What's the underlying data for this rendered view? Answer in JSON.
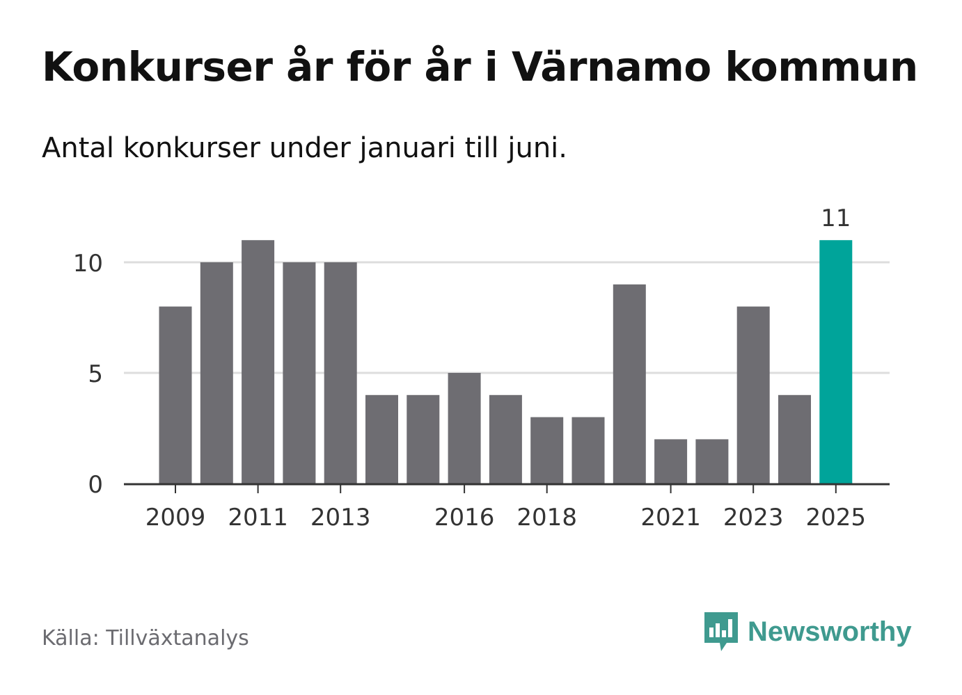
{
  "header": {
    "title": "Konkurser år för år i Värnamo kommun",
    "subtitle": "Antal konkurser under januari till juni."
  },
  "footer": {
    "source": "Källa: Tillväxtanalys",
    "brand": "Newsworthy",
    "brand_icon": "bar-chart-speech-bubble-icon"
  },
  "colors": {
    "bar": "#6e6d72",
    "highlight": "#00a49a",
    "grid": "#dddddd",
    "axis": "#333333",
    "tick_text": "#333333",
    "brand": "#3f9a8f"
  },
  "chart_data": {
    "type": "bar",
    "categories": [
      "2009",
      "2010",
      "2011",
      "2012",
      "2013",
      "2014",
      "2015",
      "2016",
      "2017",
      "2018",
      "2019",
      "2020",
      "2021",
      "2022",
      "2023",
      "2024",
      "2025"
    ],
    "values": [
      8,
      10,
      11,
      10,
      10,
      4,
      4,
      5,
      4,
      3,
      3,
      9,
      2,
      2,
      8,
      4,
      11
    ],
    "x_tick_labels": [
      "2009",
      "2011",
      "2013",
      "2016",
      "2018",
      "2021",
      "2023",
      "2025"
    ],
    "y_ticks": [
      0,
      5,
      10
    ],
    "ylim": [
      0,
      11
    ],
    "highlight_category": "2025",
    "highlight_value_label": "11",
    "grid": true
  }
}
